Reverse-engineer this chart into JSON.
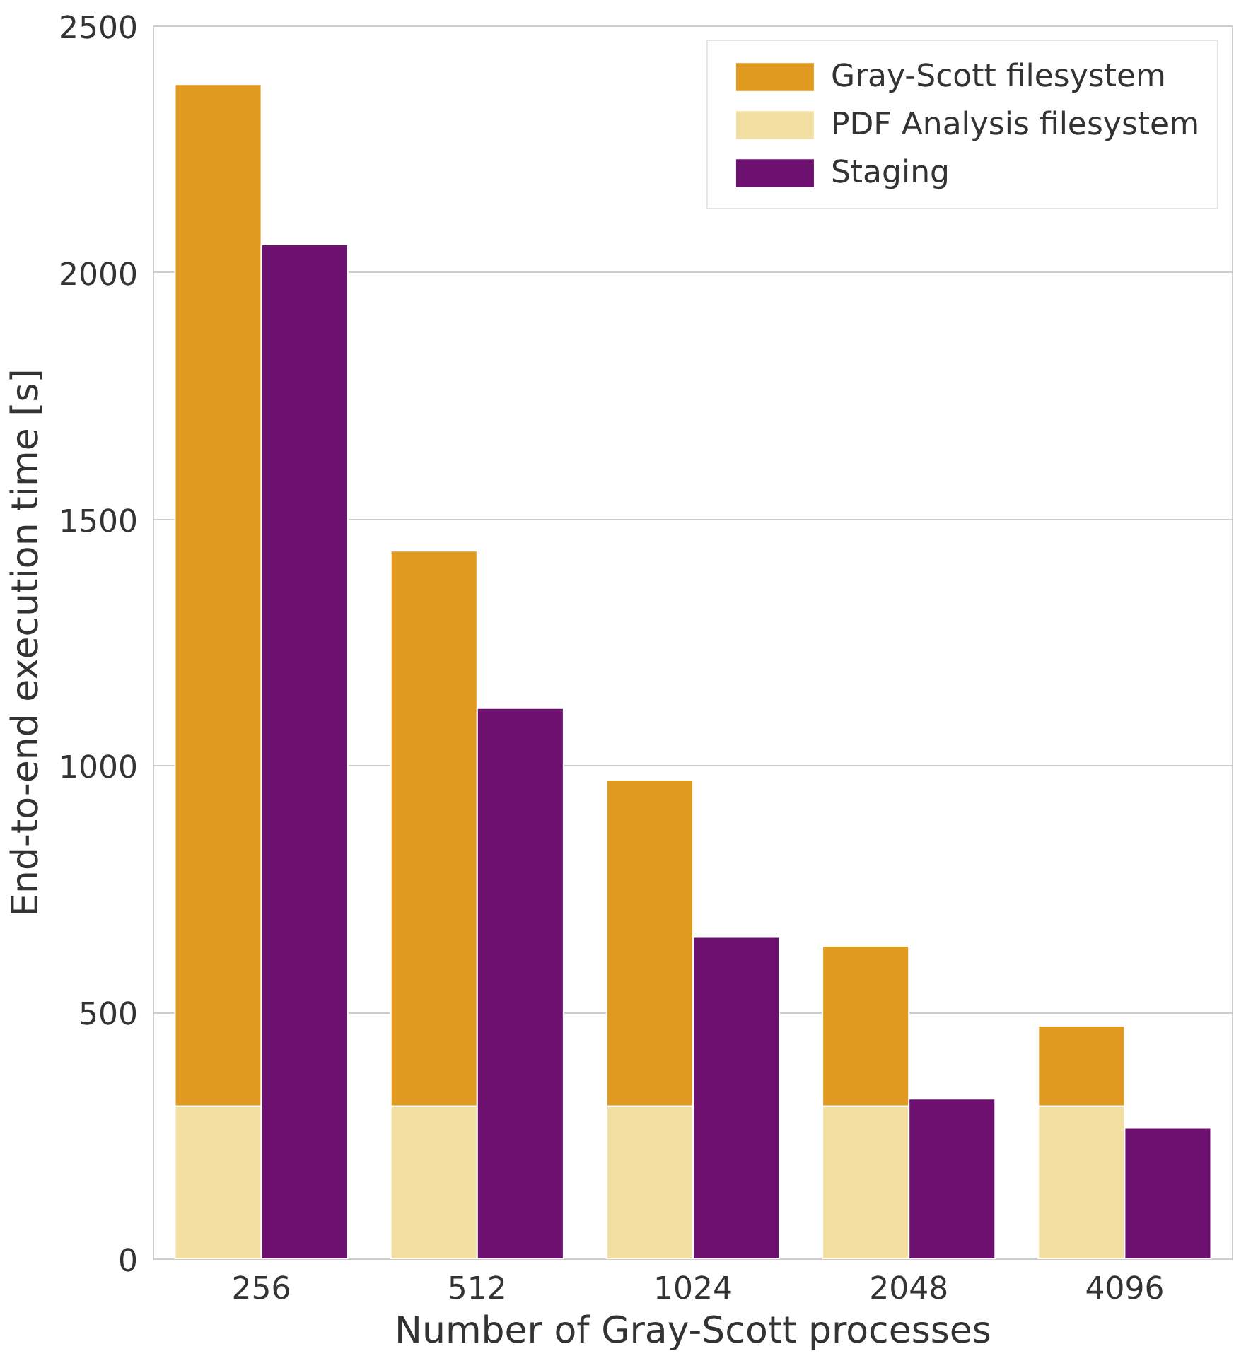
{
  "chart_data": {
    "type": "bar",
    "xlabel": "Number of Gray-Scott processes",
    "ylabel": "End-to-end execution time [s]",
    "categories": [
      "256",
      "512",
      "1024",
      "2048",
      "4096"
    ],
    "series": [
      {
        "name": "Gray-Scott filesystem",
        "color": "#e09a1f",
        "base": [
          310,
          310,
          310,
          310,
          310
        ],
        "values": [
          2072,
          1126,
          662,
          325,
          163
        ]
      },
      {
        "name": "PDF Analysis filesystem",
        "color": "#f3dfa2",
        "values": [
          310,
          310,
          310,
          310,
          310
        ]
      },
      {
        "name": "Staging",
        "color": "#6e1070",
        "values": [
          2057,
          1117,
          653,
          325,
          266
        ]
      }
    ],
    "ylim": [
      0,
      2500
    ],
    "yticks": [
      0,
      500,
      1000,
      1500,
      2000,
      2500
    ],
    "grid": "y",
    "legend": "top right"
  }
}
